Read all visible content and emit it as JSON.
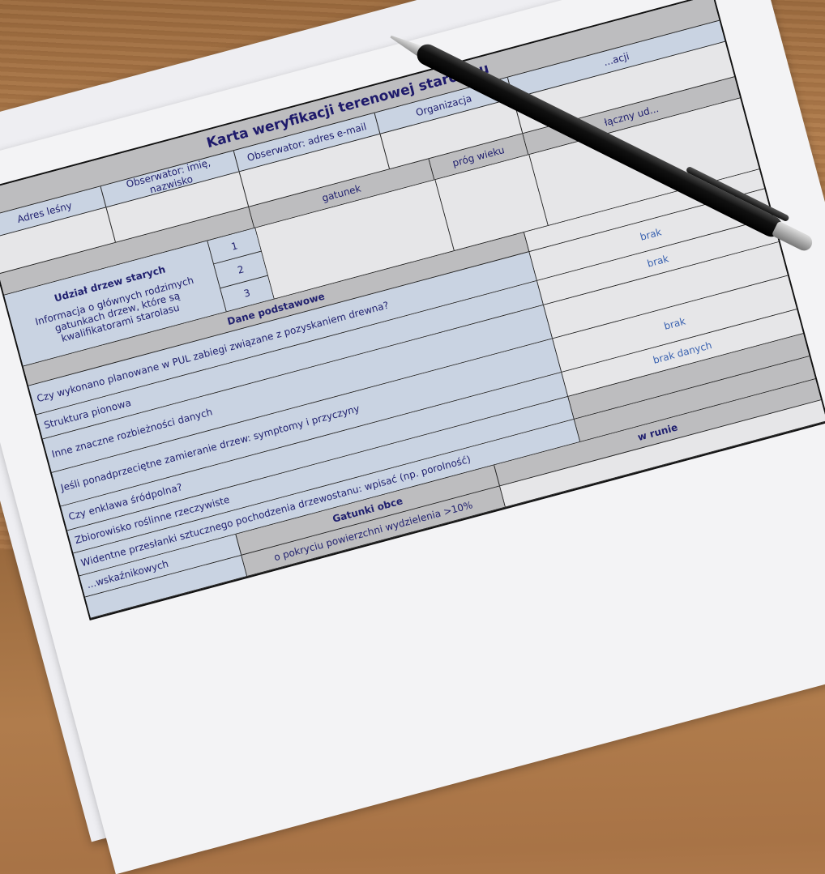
{
  "form": {
    "title": "Karta weryfikacji terenowej starolasu",
    "header": [
      "Adres leśny",
      "Obserwator: imię, nazwisko",
      "Obserwator: adres e-mail",
      "Organizacja",
      "...acji"
    ],
    "species_header": {
      "species": "gatunek",
      "age": "próg wieku",
      "share": "łączny ud..."
    },
    "old_trees": {
      "title": "Udział drzew starych",
      "description": "Informacja o głównych rodzimych gatunkach drzew, które są kwalifikatorami starolasu",
      "numbers": [
        "1",
        "2",
        "3"
      ]
    },
    "basic": {
      "title": "Dane podstawowe",
      "questions": [
        {
          "label": "Czy wykonano planowane w PUL zabiegi związane z pozyskaniem drewna?",
          "value": "brak"
        },
        {
          "label": "Struktura pionowa",
          "value": "brak"
        },
        {
          "label": "Inne znaczne rozbieżności danych",
          "value": ""
        },
        {
          "label": "Jeśli ponadprzeciętne zamieranie drzew: symptomy i przyczyny",
          "value": "brak"
        },
        {
          "label": "Czy enklawa śródpolna?",
          "value": "brak danych"
        },
        {
          "label": "Zbiorowisko roślinne rzeczywiste",
          "value": ""
        },
        {
          "label": "Widentne przesłanki sztucznego pochodzenia drzewostanu: wpisać (np. porolność)",
          "value": ""
        }
      ]
    },
    "alien": {
      "title": "Gatunki obce",
      "coverage": "o pokryciu powierzchni wydzielenia >10%",
      "undergrowth": "w runie",
      "indicators": "...wskaźnikowych"
    }
  },
  "colors": {
    "header_blue": "#c9d3e2",
    "gray": "#bdbdbf",
    "text": "#1f1f6e",
    "value": "#3a62b0"
  }
}
